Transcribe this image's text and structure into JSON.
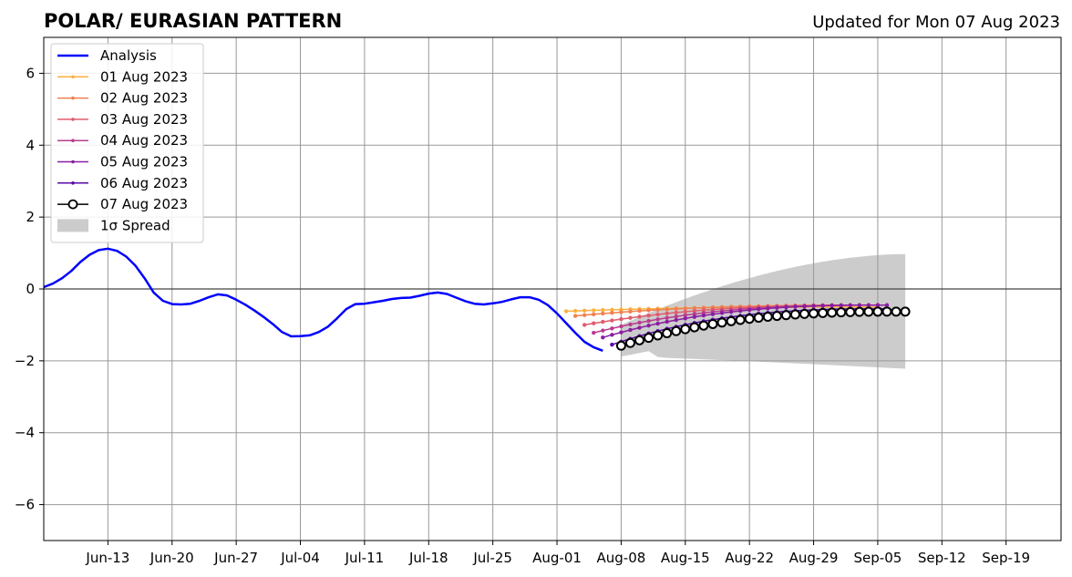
{
  "chart_data": {
    "type": "line",
    "title": "POLAR/ EURASIAN  PATTERN",
    "subtitle": "Updated for Mon 07 Aug 2023",
    "xlabel": "",
    "ylabel": "",
    "xlim": [
      "2023-06-06",
      "2023-09-25"
    ],
    "ylim": [
      -7,
      7
    ],
    "grid": true,
    "legend_position": "upper-left",
    "x_tick_labels": [
      "Jun-13",
      "Jun-20",
      "Jun-27",
      "Jul-04",
      "Jul-11",
      "Jul-18",
      "Jul-25",
      "Aug-01",
      "Aug-08",
      "Aug-15",
      "Aug-22",
      "Aug-29",
      "Sep-05",
      "Sep-12",
      "Sep-19"
    ],
    "x_ticks": [
      "2023-06-13",
      "2023-06-20",
      "2023-06-27",
      "2023-07-04",
      "2023-07-11",
      "2023-07-18",
      "2023-07-25",
      "2023-08-01",
      "2023-08-08",
      "2023-08-15",
      "2023-08-22",
      "2023-08-29",
      "2023-09-05",
      "2023-09-12",
      "2023-09-19"
    ],
    "y_ticks": [
      -6,
      -4,
      -2,
      0,
      2,
      4,
      6
    ],
    "y_tick_labels": [
      "−6",
      "−4",
      "−2",
      "0",
      "2",
      "4",
      "6"
    ],
    "analysis": {
      "name": "Analysis",
      "color": "#0000ff",
      "start_date": "2023-06-06",
      "values": [
        0.05,
        0.15,
        0.3,
        0.5,
        0.75,
        0.95,
        1.08,
        1.12,
        1.06,
        0.9,
        0.65,
        0.3,
        -0.1,
        -0.33,
        -0.42,
        -0.43,
        -0.41,
        -0.33,
        -0.23,
        -0.15,
        -0.18,
        -0.3,
        -0.44,
        -0.6,
        -0.78,
        -0.98,
        -1.2,
        -1.32,
        -1.31,
        -1.29,
        -1.2,
        -1.05,
        -0.82,
        -0.56,
        -0.42,
        -0.41,
        -0.37,
        -0.33,
        -0.28,
        -0.25,
        -0.24,
        -0.19,
        -0.13,
        -0.1,
        -0.14,
        -0.24,
        -0.34,
        -0.41,
        -0.43,
        -0.4,
        -0.36,
        -0.29,
        -0.23,
        -0.23,
        -0.3,
        -0.45,
        -0.68,
        -0.95,
        -1.22,
        -1.47,
        -1.62,
        -1.72
      ]
    },
    "forecasts": [
      {
        "name": "01 Aug 2023",
        "color": "#fcb040",
        "start_date": "2023-08-02",
        "start": -0.62,
        "end": -0.5,
        "days": 35,
        "marker": "small"
      },
      {
        "name": "02 Aug 2023",
        "color": "#f08050",
        "start_date": "2023-08-03",
        "start": -0.75,
        "end": -0.45,
        "days": 34,
        "marker": "small"
      },
      {
        "name": "03 Aug 2023",
        "color": "#e05c6e",
        "start_date": "2023-08-04",
        "start": -1.0,
        "end": -0.45,
        "days": 33,
        "marker": "small"
      },
      {
        "name": "04 Aug 2023",
        "color": "#b83c8e",
        "start_date": "2023-08-05",
        "start": -1.22,
        "end": -0.45,
        "days": 32,
        "marker": "small"
      },
      {
        "name": "05 Aug 2023",
        "color": "#8a1da0",
        "start_date": "2023-08-06",
        "start": -1.35,
        "end": -0.45,
        "days": 32,
        "marker": "small"
      },
      {
        "name": "06 Aug 2023",
        "color": "#5a0aa8",
        "start_date": "2023-08-07",
        "start": -1.55,
        "end": -0.55,
        "days": 31,
        "marker": "small"
      },
      {
        "name": "07 Aug 2023",
        "color": "#000000",
        "start_date": "2023-08-08",
        "start": -1.58,
        "end": -0.63,
        "days": 32,
        "marker": "open-circle"
      }
    ],
    "spread": {
      "name": "1σ Spread",
      "color": "#cccccc",
      "start_date": "2023-08-08",
      "end_date": "2023-09-08",
      "upper_start": -1.0,
      "upper_end": 0.97,
      "lower_start": -1.88,
      "lower_end": -2.22
    }
  }
}
